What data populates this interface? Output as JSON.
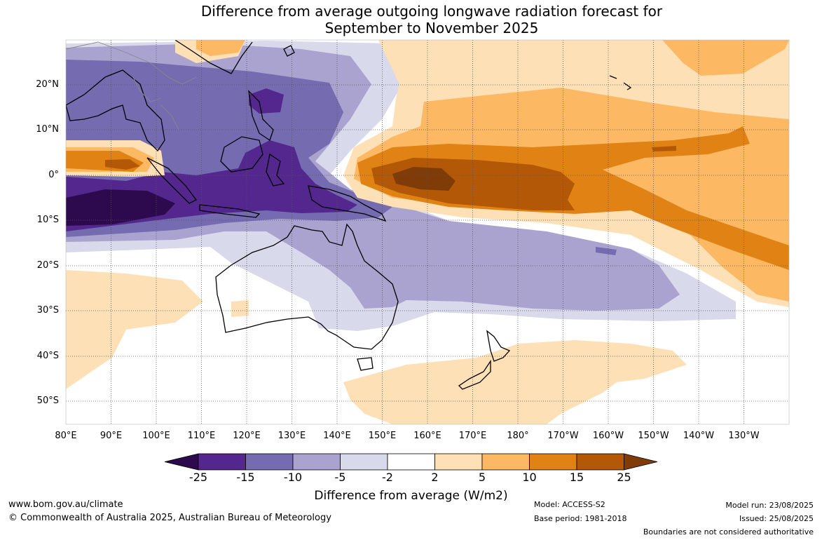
{
  "title": {
    "line1": "Difference from average outgoing longwave radiation forecast for",
    "line2": "September to November 2025"
  },
  "map": {
    "lat_labels": [
      "20°N",
      "10°N",
      "0°",
      "10°S",
      "20°S",
      "30°S",
      "40°S",
      "50°S"
    ],
    "lon_labels": [
      "80°E",
      "90°E",
      "100°E",
      "110°E",
      "120°E",
      "130°E",
      "140°E",
      "150°E",
      "160°E",
      "170°E",
      "180°",
      "170°W",
      "160°W",
      "150°W",
      "140°W",
      "130°W"
    ],
    "extent": {
      "lon_min": 80,
      "lon_max": 240,
      "lat_min": -55,
      "lat_max": 30
    }
  },
  "colorbar": {
    "ticks": [
      "-25",
      "-15",
      "-10",
      "-5",
      "-2",
      "2",
      "5",
      "10",
      "15",
      "25"
    ],
    "colors": [
      "#2d0a4e",
      "#54278f",
      "#756bb1",
      "#aaa3cf",
      "#d9d9ec",
      "#ffffff",
      "#fee0b6",
      "#fdb863",
      "#e08214",
      "#b35806",
      "#7f3b08"
    ],
    "title": "Difference from average (W/m2)"
  },
  "footer": {
    "url": "www.bom.gov.au/climate",
    "copyright": "© Commonwealth of Australia 2025, Australian Bureau of Meteorology",
    "model": "Model: ACCESS-S2",
    "base_period": "Base period: 1981-2018",
    "model_run": "Model run: 23/08/2025",
    "issued": "Issued: 25/08/2025",
    "disclaimer": "Boundaries are not considered authoritative"
  }
}
